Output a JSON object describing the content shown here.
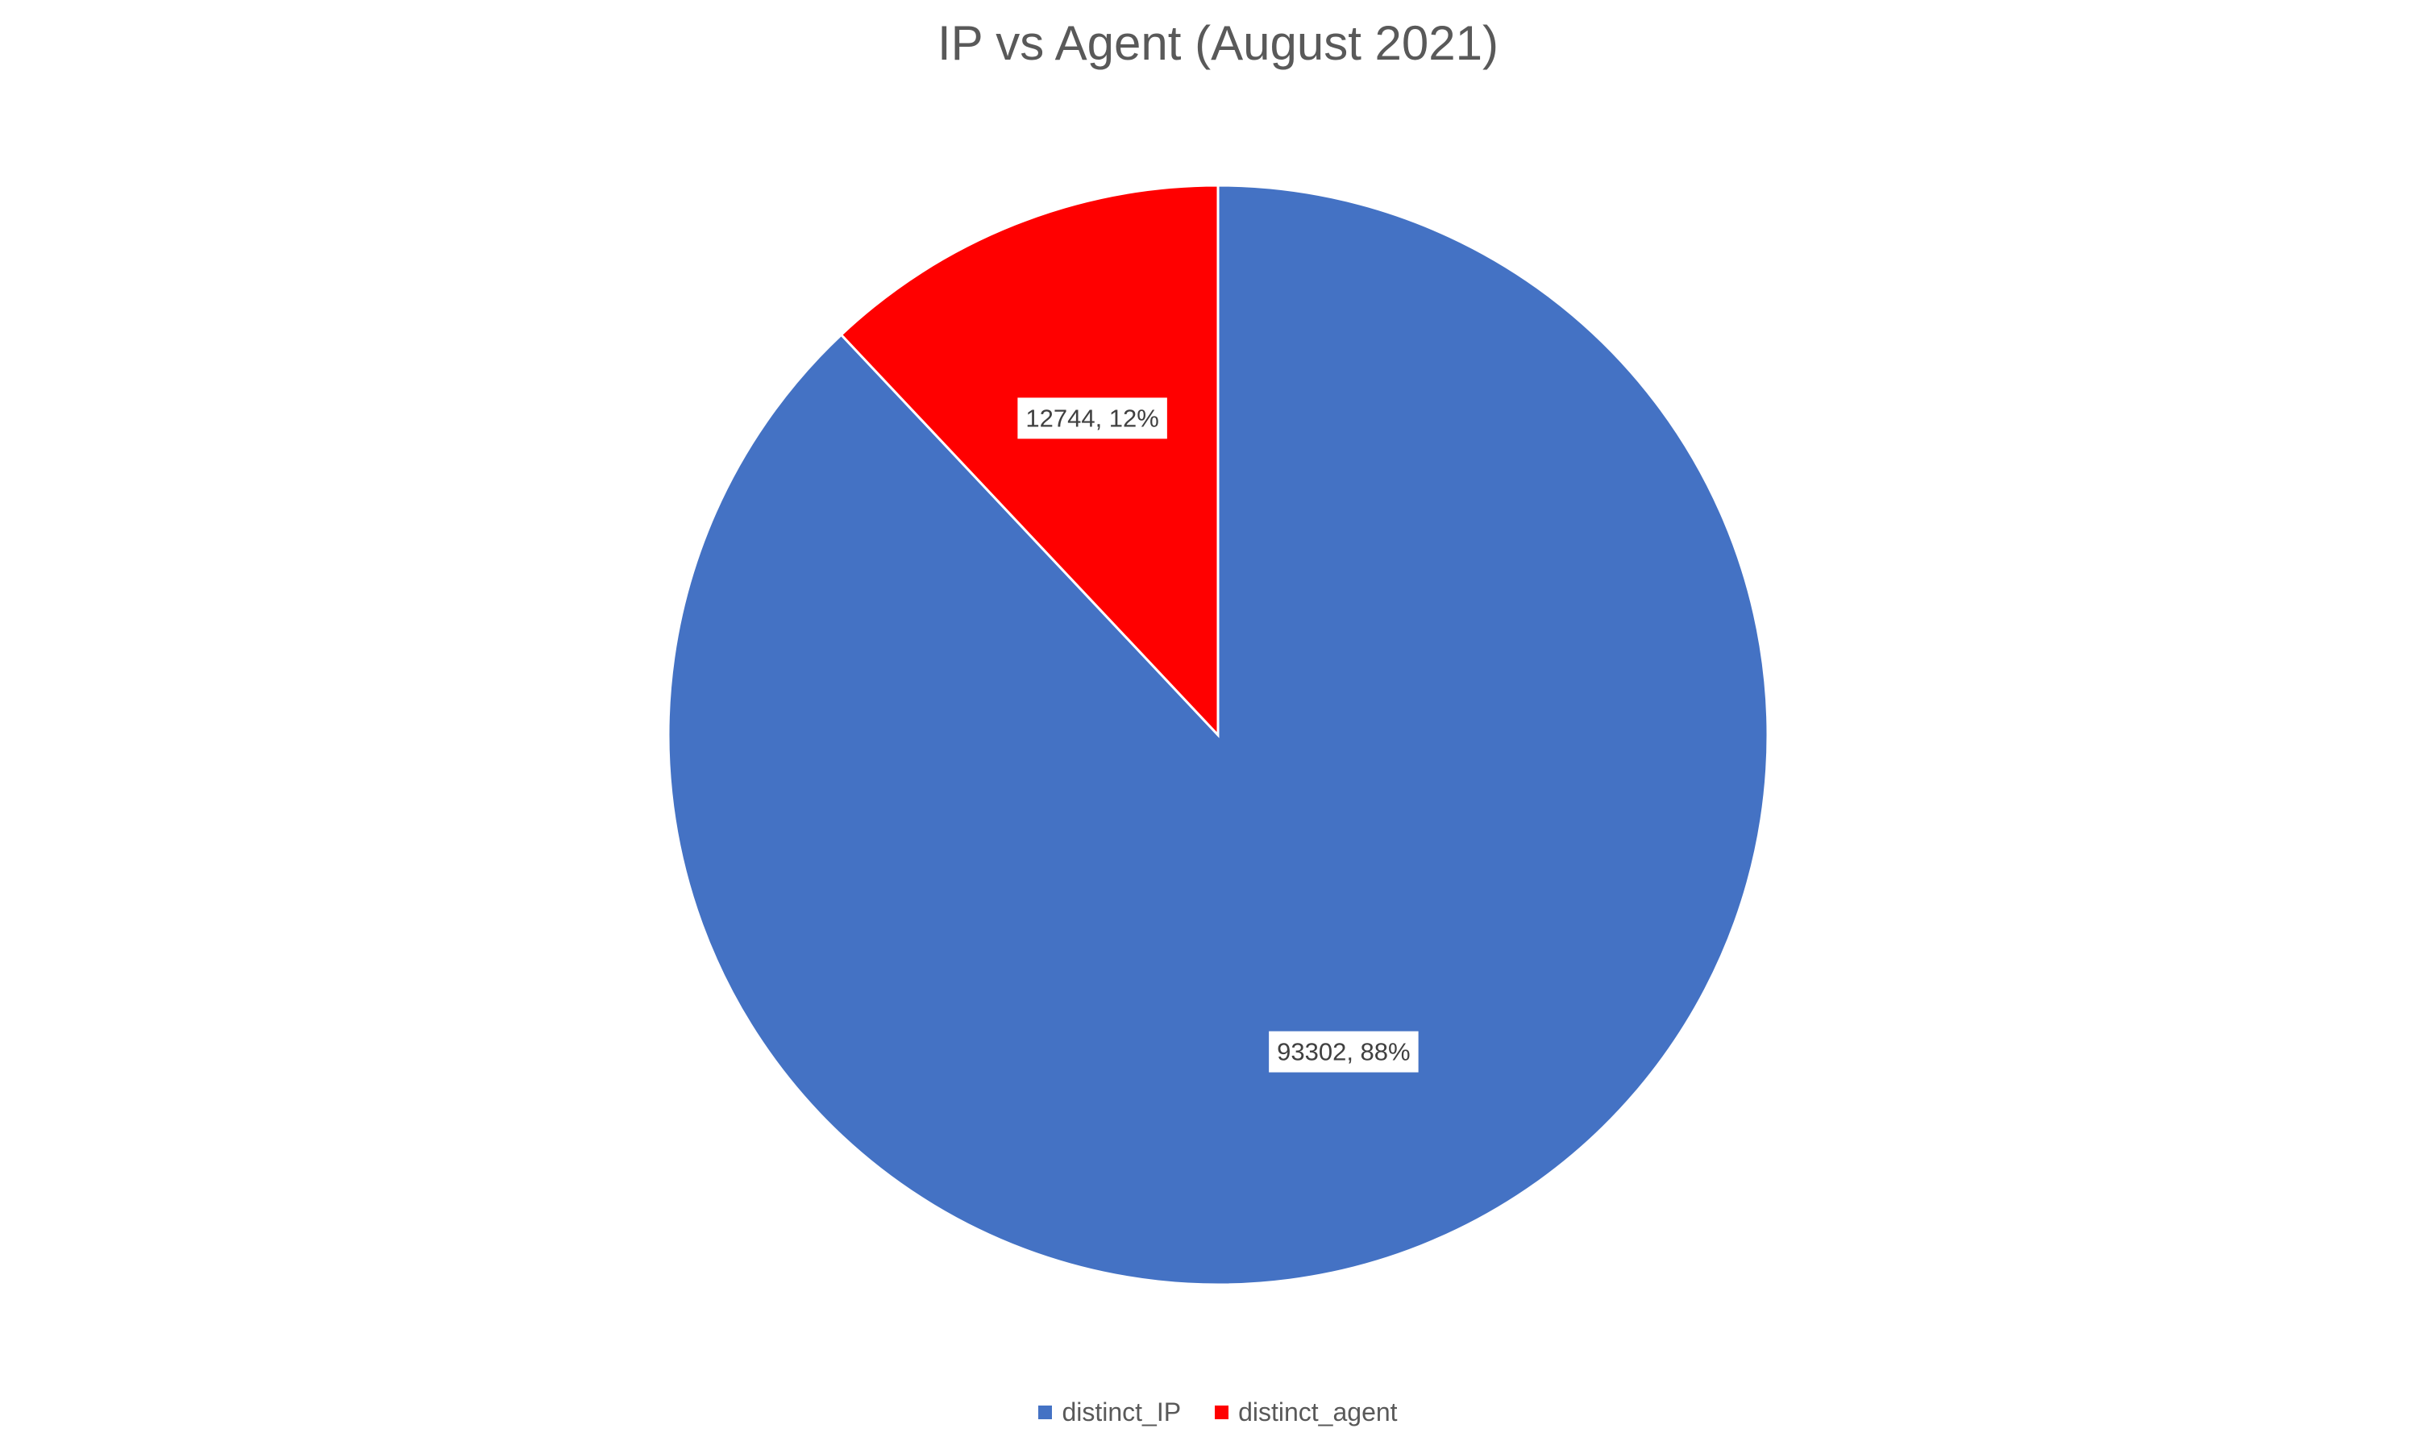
{
  "chart_data": {
    "type": "pie",
    "title": "IP vs Agent (August 2021)",
    "slices": [
      {
        "label": "distinct_IP",
        "value": 93302,
        "percent": 88,
        "data_label": "93302, 88%",
        "color": "#4472C4"
      },
      {
        "label": "distinct_agent",
        "value": 12744,
        "percent": 12,
        "data_label": "12744, 12%",
        "color": "#FF0000"
      }
    ],
    "legend": {
      "placement": "bottom",
      "entries": [
        "distinct_IP",
        "distinct_agent"
      ]
    }
  }
}
